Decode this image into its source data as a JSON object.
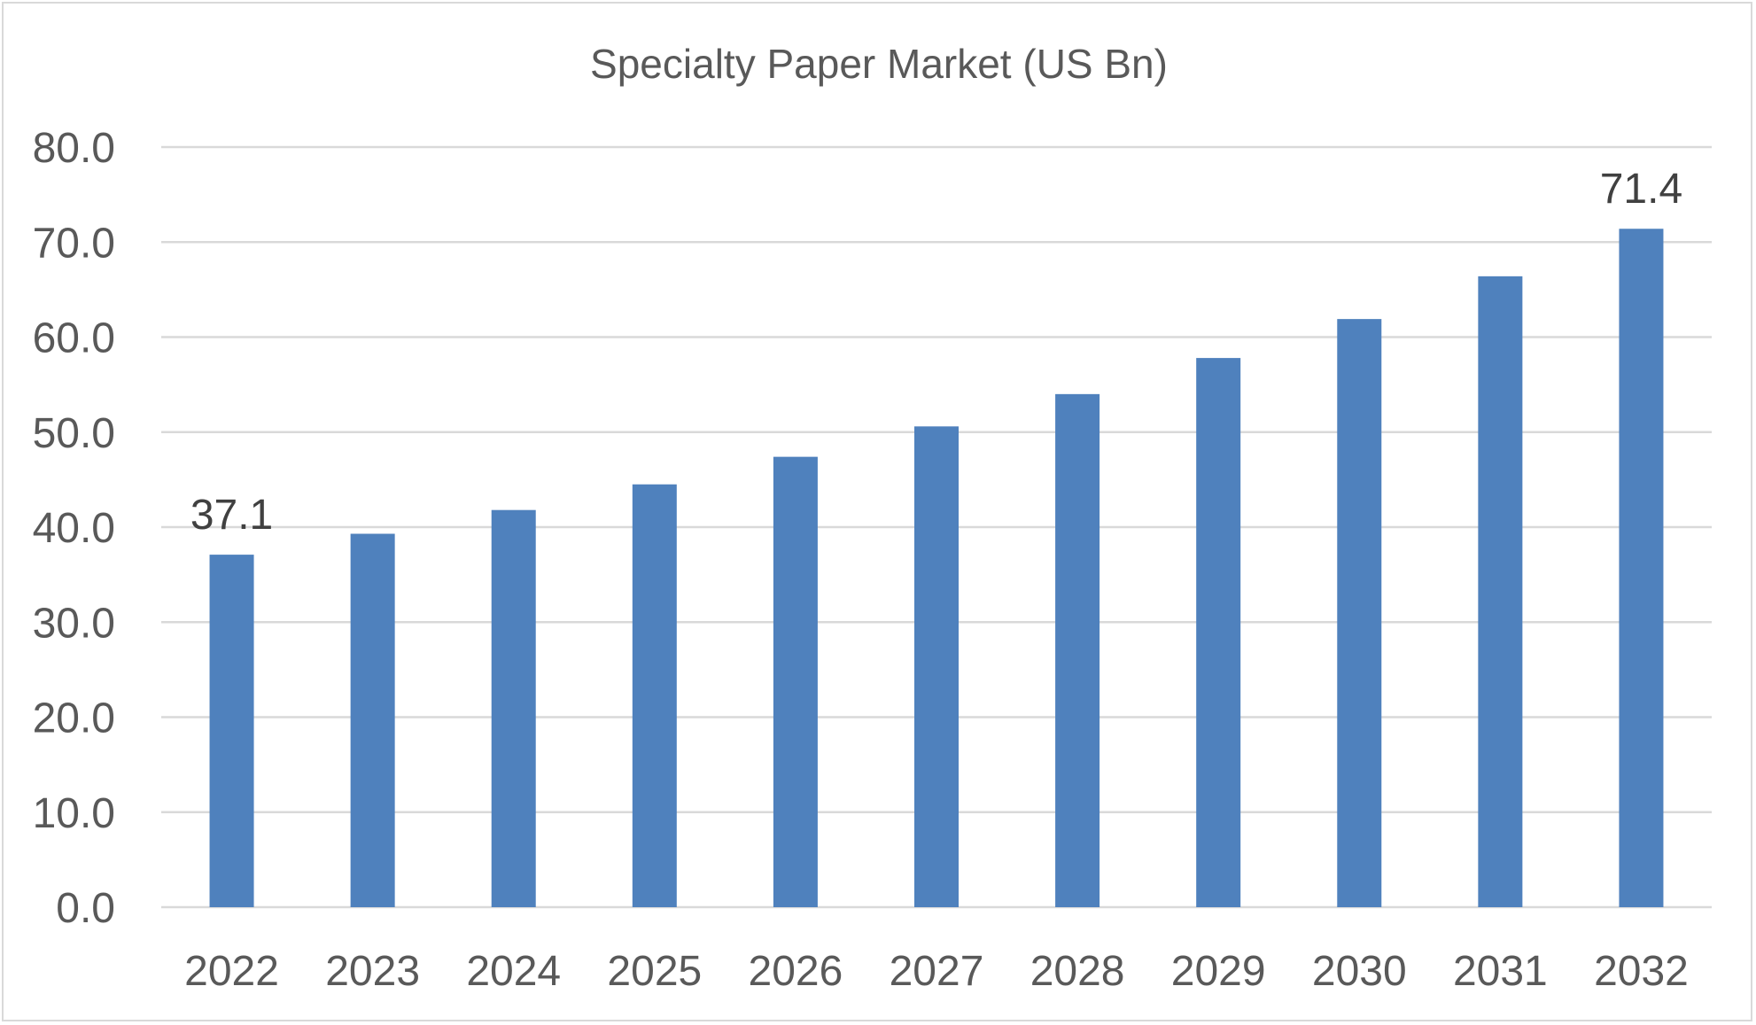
{
  "chart_data": {
    "type": "bar",
    "title": "Specialty Paper Market (US Bn)",
    "xlabel": "",
    "ylabel": "",
    "categories": [
      "2022",
      "2023",
      "2024",
      "2025",
      "2026",
      "2027",
      "2028",
      "2029",
      "2030",
      "2031",
      "2032"
    ],
    "series": [
      {
        "values": [
          37.1,
          39.3,
          41.8,
          44.5,
          47.4,
          50.6,
          54.0,
          57.8,
          61.9,
          66.4,
          71.4
        ],
        "color": "#4f81bd"
      }
    ],
    "data_labels": [
      {
        "category": "2022",
        "text": "37.1"
      },
      {
        "category": "2032",
        "text": "71.4"
      }
    ],
    "ylim": [
      0,
      80
    ],
    "yticks": [
      "0.0",
      "10.0",
      "20.0",
      "30.0",
      "40.0",
      "50.0",
      "60.0",
      "70.0",
      "80.0"
    ],
    "grid": true,
    "legend": "none"
  }
}
